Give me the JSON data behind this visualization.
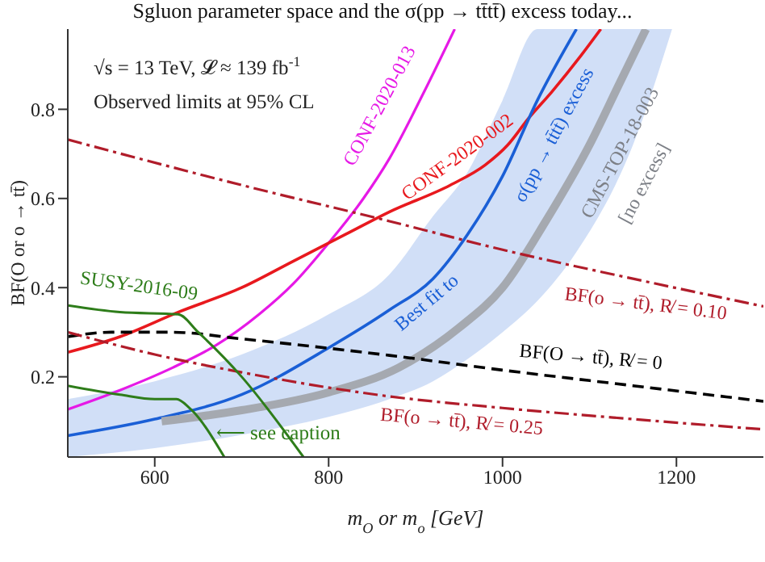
{
  "chart_data": {
    "type": "line",
    "title": "Sgluon parameter space and the σ(pp → tt̄tt̄) excess today...",
    "xlabel": "m$_{O}$ or m$_{o}$ [GeV]",
    "ylabel": "BF(O or o → tt̄)",
    "xlim": [
      500,
      1300
    ],
    "ylim": [
      0.02,
      0.98
    ],
    "xticks": [
      600,
      800,
      1000,
      1200
    ],
    "yticks": [
      0.2,
      0.4,
      0.6,
      0.8
    ],
    "annotations": [
      "√s = 13 TeV,  𝓛 ≈ 139 fb$^{-1}$",
      "Observed limits at 95% CL",
      "⟵ see caption"
    ],
    "series": [
      {
        "name": "CONF-2020-013",
        "color": "#e619e6",
        "line_style": "solid",
        "x": [
          500,
          560,
          620,
          670,
          720,
          760,
          800,
          840,
          870,
          910,
          945
        ],
        "values": [
          0.127,
          0.17,
          0.22,
          0.27,
          0.34,
          0.41,
          0.5,
          0.6,
          0.69,
          0.84,
          0.98
        ]
      },
      {
        "name": "CONF-2020-002",
        "color": "#e8191e",
        "line_style": "solid",
        "x": [
          500,
          560,
          627,
          700,
          760,
          820,
          870,
          940,
          980,
          1006,
          1030,
          1057,
          1090,
          1113
        ],
        "values": [
          0.255,
          0.29,
          0.345,
          0.4,
          0.46,
          0.52,
          0.57,
          0.63,
          0.675,
          0.72,
          0.78,
          0.84,
          0.92,
          0.98
        ]
      },
      {
        "name": "Best fit to σ(pp → tt̄tt̄) excess",
        "color": "#1a5fd6",
        "line_style": "solid",
        "x": [
          500,
          600,
          700,
          800,
          870,
          920,
          960,
          1000,
          1040,
          1085,
          1150,
          1195
        ],
        "values": [
          0.068,
          0.105,
          0.16,
          0.265,
          0.35,
          0.42,
          0.52,
          0.65,
          0.82,
          0.98,
          null,
          null
        ],
        "lower": [
          0.02,
          0.04,
          0.07,
          0.11,
          0.15,
          0.19,
          0.24,
          0.3,
          0.37,
          0.48,
          0.72,
          0.98
        ],
        "upper": [
          0.15,
          0.19,
          0.25,
          0.34,
          0.43,
          0.56,
          0.66,
          0.82,
          0.98,
          0.98,
          0.98,
          0.98
        ]
      },
      {
        "name": "CMS-TOP-18-003 [no excess]",
        "color": "#a5a9b0",
        "line_style": "solid",
        "x": [
          608,
          700,
          800,
          880,
          950,
          1000,
          1050,
          1100,
          1135,
          1165
        ],
        "values": [
          0.1,
          0.125,
          0.165,
          0.22,
          0.31,
          0.4,
          0.55,
          0.72,
          0.86,
          0.98
        ]
      },
      {
        "name": "BF(o → tt̄), R̸ = 0.10",
        "color": "#b01c2a",
        "line_style": "dashdot",
        "x": [
          500,
          700,
          870,
          1000,
          1150,
          1300
        ],
        "values": [
          0.732,
          0.63,
          0.549,
          0.485,
          0.42,
          0.358
        ]
      },
      {
        "name": "BF(O → tt̄),  R̸ = 0",
        "color": "#000000",
        "line_style": "dashed",
        "x": [
          500,
          550,
          620,
          700,
          870,
          1000,
          1150,
          1300
        ],
        "values": [
          0.29,
          0.3,
          0.3,
          0.285,
          0.248,
          0.215,
          0.18,
          0.145
        ]
      },
      {
        "name": "BF(o → tt̄), R̸ = 0.25",
        "color": "#b01c2a",
        "line_style": "dashdot",
        "x": [
          500,
          600,
          700,
          870,
          1000,
          1150,
          1300
        ],
        "values": [
          0.3,
          0.25,
          0.21,
          0.156,
          0.13,
          0.105,
          0.082
        ]
      },
      {
        "name": "SUSY-2016-09",
        "color": "#2e7d1a",
        "line_style": "solid",
        "x": [
          500,
          560,
          627,
          650,
          700,
          771
        ],
        "values": [
          0.36,
          0.345,
          0.34,
          0.3,
          0.2,
          0.02
        ]
      },
      {
        "color": "#2e7d1a",
        "line_style": "solid",
        "x": [
          500,
          560,
          600,
          625,
          640,
          680
        ],
        "values": [
          0.18,
          0.16,
          0.15,
          0.15,
          0.13,
          0.02
        ]
      }
    ]
  }
}
